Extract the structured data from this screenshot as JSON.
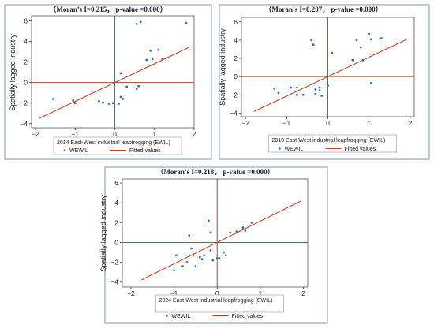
{
  "chart_data": [
    {
      "type": "scatter",
      "title": "（Moran’s I=0.215， p-value =0.000）",
      "xlabel": "2014 East-West industrial leapfrogging (EWIL)",
      "ylabel": "Spatially lagged industry",
      "xticks": [
        "−2",
        "−1",
        "0",
        "1",
        "2"
      ],
      "yticks": [
        "6",
        "4",
        "2",
        "0",
        "−2",
        "−4"
      ],
      "xlim": [
        -2.1,
        2.0
      ],
      "ylim": [
        -4.4,
        6.5
      ],
      "fit": {
        "slope": 1.83,
        "intercept": 0.0,
        "x_range": [
          -1.9,
          1.9
        ]
      },
      "legend": {
        "markers_label": "WEWIL",
        "line_label": "Fitted values"
      },
      "series": [
        {
          "name": "WEWIL",
          "points": [
            [
              -1.55,
              -1.6
            ],
            [
              -1.05,
              -1.75
            ],
            [
              -1.0,
              -2.0
            ],
            [
              -0.4,
              -1.8
            ],
            [
              -0.3,
              -1.95
            ],
            [
              -0.15,
              -2.05
            ],
            [
              -0.05,
              -2.0
            ],
            [
              0.1,
              -2.05
            ],
            [
              0.15,
              -1.4
            ],
            [
              0.2,
              -1.6
            ],
            [
              0.15,
              0.9
            ],
            [
              0.3,
              -0.4
            ],
            [
              0.55,
              -0.6
            ],
            [
              0.6,
              -0.35
            ],
            [
              0.55,
              5.7
            ],
            [
              0.65,
              5.9
            ],
            [
              0.8,
              2.2
            ],
            [
              0.9,
              3.1
            ],
            [
              0.95,
              2.3
            ],
            [
              1.1,
              3.2
            ],
            [
              1.2,
              2.3
            ],
            [
              1.8,
              5.8
            ]
          ]
        }
      ]
    },
    {
      "type": "scatter",
      "title": "（Moran’s I=0.207， p-value =0.000）",
      "xlabel": "2019 East-West industrial leapfrogging (EWIL)",
      "ylabel": "Spatially lagged industry",
      "xticks": [
        "−2",
        "−1",
        "0",
        "1",
        "2"
      ],
      "yticks": [
        "6",
        "4",
        "2",
        "0",
        "−2",
        "−4"
      ],
      "xlim": [
        -2.1,
        2.1
      ],
      "ylim": [
        -4.4,
        6.5
      ],
      "fit": {
        "slope": 2.13,
        "intercept": 0.0,
        "x_range": [
          -1.8,
          1.95
        ]
      },
      "legend": {
        "markers_label": "WEWIL",
        "line_label": "Fitted values"
      },
      "series": [
        {
          "name": "WEWIL",
          "points": [
            [
              -1.3,
              -1.3
            ],
            [
              -1.2,
              -1.8
            ],
            [
              -0.9,
              -1.2
            ],
            [
              -0.75,
              -1.2
            ],
            [
              -0.75,
              -2.0
            ],
            [
              -0.6,
              -2.0
            ],
            [
              -0.3,
              -1.4
            ],
            [
              -0.3,
              -1.9
            ],
            [
              -0.2,
              -1.2
            ],
            [
              -0.2,
              -1.5
            ],
            [
              -0.15,
              -2.1
            ],
            [
              0.0,
              -1.0
            ],
            [
              -0.4,
              4.0
            ],
            [
              -0.35,
              3.5
            ],
            [
              0.1,
              2.6
            ],
            [
              0.6,
              1.8
            ],
            [
              0.7,
              4.0
            ],
            [
              0.8,
              3.2
            ],
            [
              0.85,
              1.8
            ],
            [
              1.0,
              4.7
            ],
            [
              1.05,
              4.1
            ],
            [
              1.05,
              -0.7
            ],
            [
              1.3,
              4.2
            ]
          ]
        }
      ]
    },
    {
      "type": "scatter",
      "title": "（Moran’s I=0.218， p-value =0.000）",
      "xlabel": "2024 East-West industrial leapfrogging (EWIL)",
      "ylabel": "Spatially lagged industry",
      "xticks": [
        "−2",
        "−1",
        "0",
        "1",
        "2"
      ],
      "yticks": [
        "6",
        "4",
        "2",
        "0",
        "−2",
        "−4"
      ],
      "xlim": [
        -2.2,
        2.1
      ],
      "ylim": [
        -4.5,
        6.4
      ],
      "fit": {
        "slope": 2.15,
        "intercept": 0.0,
        "x_range": [
          -1.75,
          1.95
        ]
      },
      "legend": {
        "markers_label": "WEWIL",
        "line_label": "Fitted values"
      },
      "series": [
        {
          "name": "WEWIL",
          "points": [
            [
              -1.0,
              -2.8
            ],
            [
              -0.95,
              -1.3
            ],
            [
              -0.8,
              -2.4
            ],
            [
              -0.7,
              -2.0
            ],
            [
              -0.65,
              0.7
            ],
            [
              -0.6,
              -0.6
            ],
            [
              -0.55,
              -1.3
            ],
            [
              -0.5,
              -2.4
            ],
            [
              -0.4,
              -1.5
            ],
            [
              -0.35,
              -1.7
            ],
            [
              -0.3,
              -1.3
            ],
            [
              -0.2,
              2.2
            ],
            [
              -0.15,
              1.0
            ],
            [
              -0.15,
              -0.8
            ],
            [
              -0.1,
              -1.8
            ],
            [
              0.0,
              -1.6
            ],
            [
              0.05,
              -1.6
            ],
            [
              0.15,
              -1.0
            ],
            [
              0.2,
              -1.3
            ],
            [
              0.3,
              1.0
            ],
            [
              0.45,
              1.1
            ],
            [
              0.6,
              1.5
            ],
            [
              0.65,
              1.2
            ],
            [
              0.8,
              2.0
            ]
          ]
        }
      ]
    }
  ]
}
